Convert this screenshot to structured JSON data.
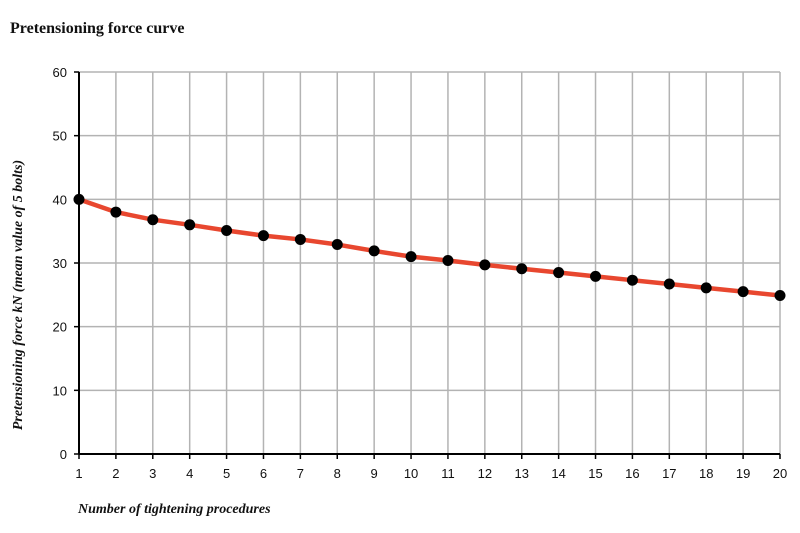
{
  "chart_data": {
    "type": "line",
    "title": "Pretensioning force curve",
    "xlabel": "Number of tightening procedures",
    "ylabel": "Pretensioning force kN (mean value of 5 bolts)",
    "x": [
      1,
      2,
      3,
      4,
      5,
      6,
      7,
      8,
      9,
      10,
      11,
      12,
      13,
      14,
      15,
      16,
      17,
      18,
      19,
      20
    ],
    "series": [
      {
        "values": [
          40,
          38,
          36.8,
          36,
          35.1,
          34.3,
          33.7,
          32.9,
          31.9,
          31,
          30.4,
          29.7,
          29.1,
          28.5,
          27.9,
          27.3,
          26.7,
          26.1,
          25.5,
          24.9
        ]
      }
    ],
    "xlim": [
      1,
      20
    ],
    "ylim": [
      0,
      60
    ],
    "yticks": [
      0,
      10,
      20,
      30,
      40,
      50,
      60
    ],
    "grid": true,
    "colors": {
      "line": "#e8472f",
      "marker": "#000000",
      "grid": "#b3b3b3",
      "axis": "#000000"
    }
  }
}
